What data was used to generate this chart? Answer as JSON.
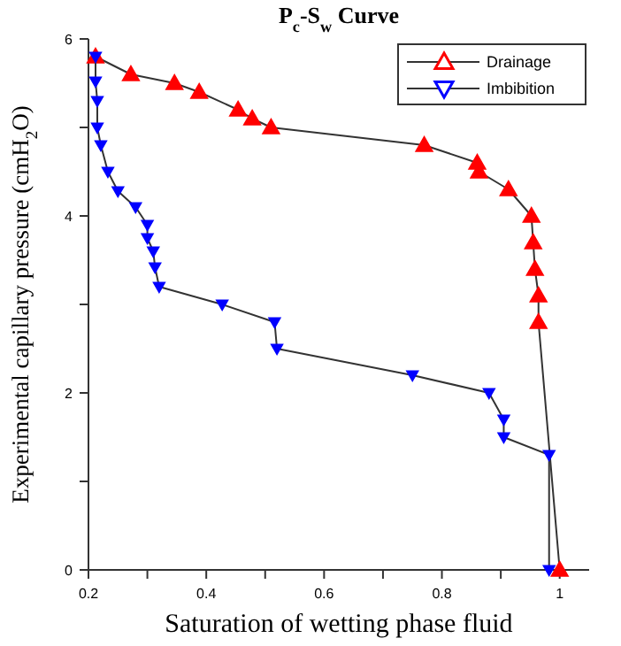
{
  "chart_data": {
    "type": "line",
    "title": "P$_{c}$-S$_{w}$ Curve",
    "xlabel": "Saturation of wetting phase fluid",
    "ylabel": "Experimental capillary pressure (cmH$_{2}$O)",
    "xlim": [
      0.2,
      1.05
    ],
    "ylim": [
      0,
      6
    ],
    "xticks": [
      0.2,
      {
        "value": 0.3,
        "label": null
      },
      0.4,
      {
        "value": 0.5,
        "label": null
      },
      0.6,
      {
        "value": 0.7,
        "label": null
      },
      0.8,
      {
        "value": 0.9,
        "label": null
      },
      1
    ],
    "yticks": [
      0,
      {
        "value": 1,
        "label": null
      },
      2,
      {
        "value": 3,
        "label": null
      },
      4,
      {
        "value": 5,
        "label": null
      },
      6
    ],
    "grid": false,
    "legend": "top right",
    "series": [
      {
        "name": "Drainage",
        "color": "#ff0000",
        "marker": "triangle",
        "x": [
          0.212,
          0.272,
          0.346,
          0.388,
          0.454,
          0.478,
          0.51,
          0.77,
          0.86,
          0.863,
          0.913,
          0.952,
          0.955,
          0.958,
          0.964,
          0.964,
          1.0
        ],
        "values": [
          5.8,
          5.6,
          5.5,
          5.4,
          5.2,
          5.1,
          5.0,
          4.8,
          4.6,
          4.5,
          4.3,
          4.0,
          3.7,
          3.4,
          3.1,
          2.8,
          0
        ]
      },
      {
        "name": "Imbibition",
        "color": "#0000ff",
        "marker": "triangle-down",
        "x": [
          0.212,
          0.212,
          0.215,
          0.215,
          0.221,
          0.233,
          0.25,
          0.28,
          0.3,
          0.3,
          0.31,
          0.313,
          0.32,
          0.427,
          0.516,
          0.52,
          0.75,
          0.88,
          0.905,
          0.905,
          0.982,
          0.982
        ],
        "values": [
          5.8,
          5.52,
          5.3,
          5.0,
          4.8,
          4.5,
          4.28,
          4.1,
          3.9,
          3.75,
          3.6,
          3.42,
          3.2,
          3.0,
          2.8,
          2.5,
          2.2,
          2.0,
          1.7,
          1.5,
          1.3,
          0
        ]
      }
    ]
  }
}
